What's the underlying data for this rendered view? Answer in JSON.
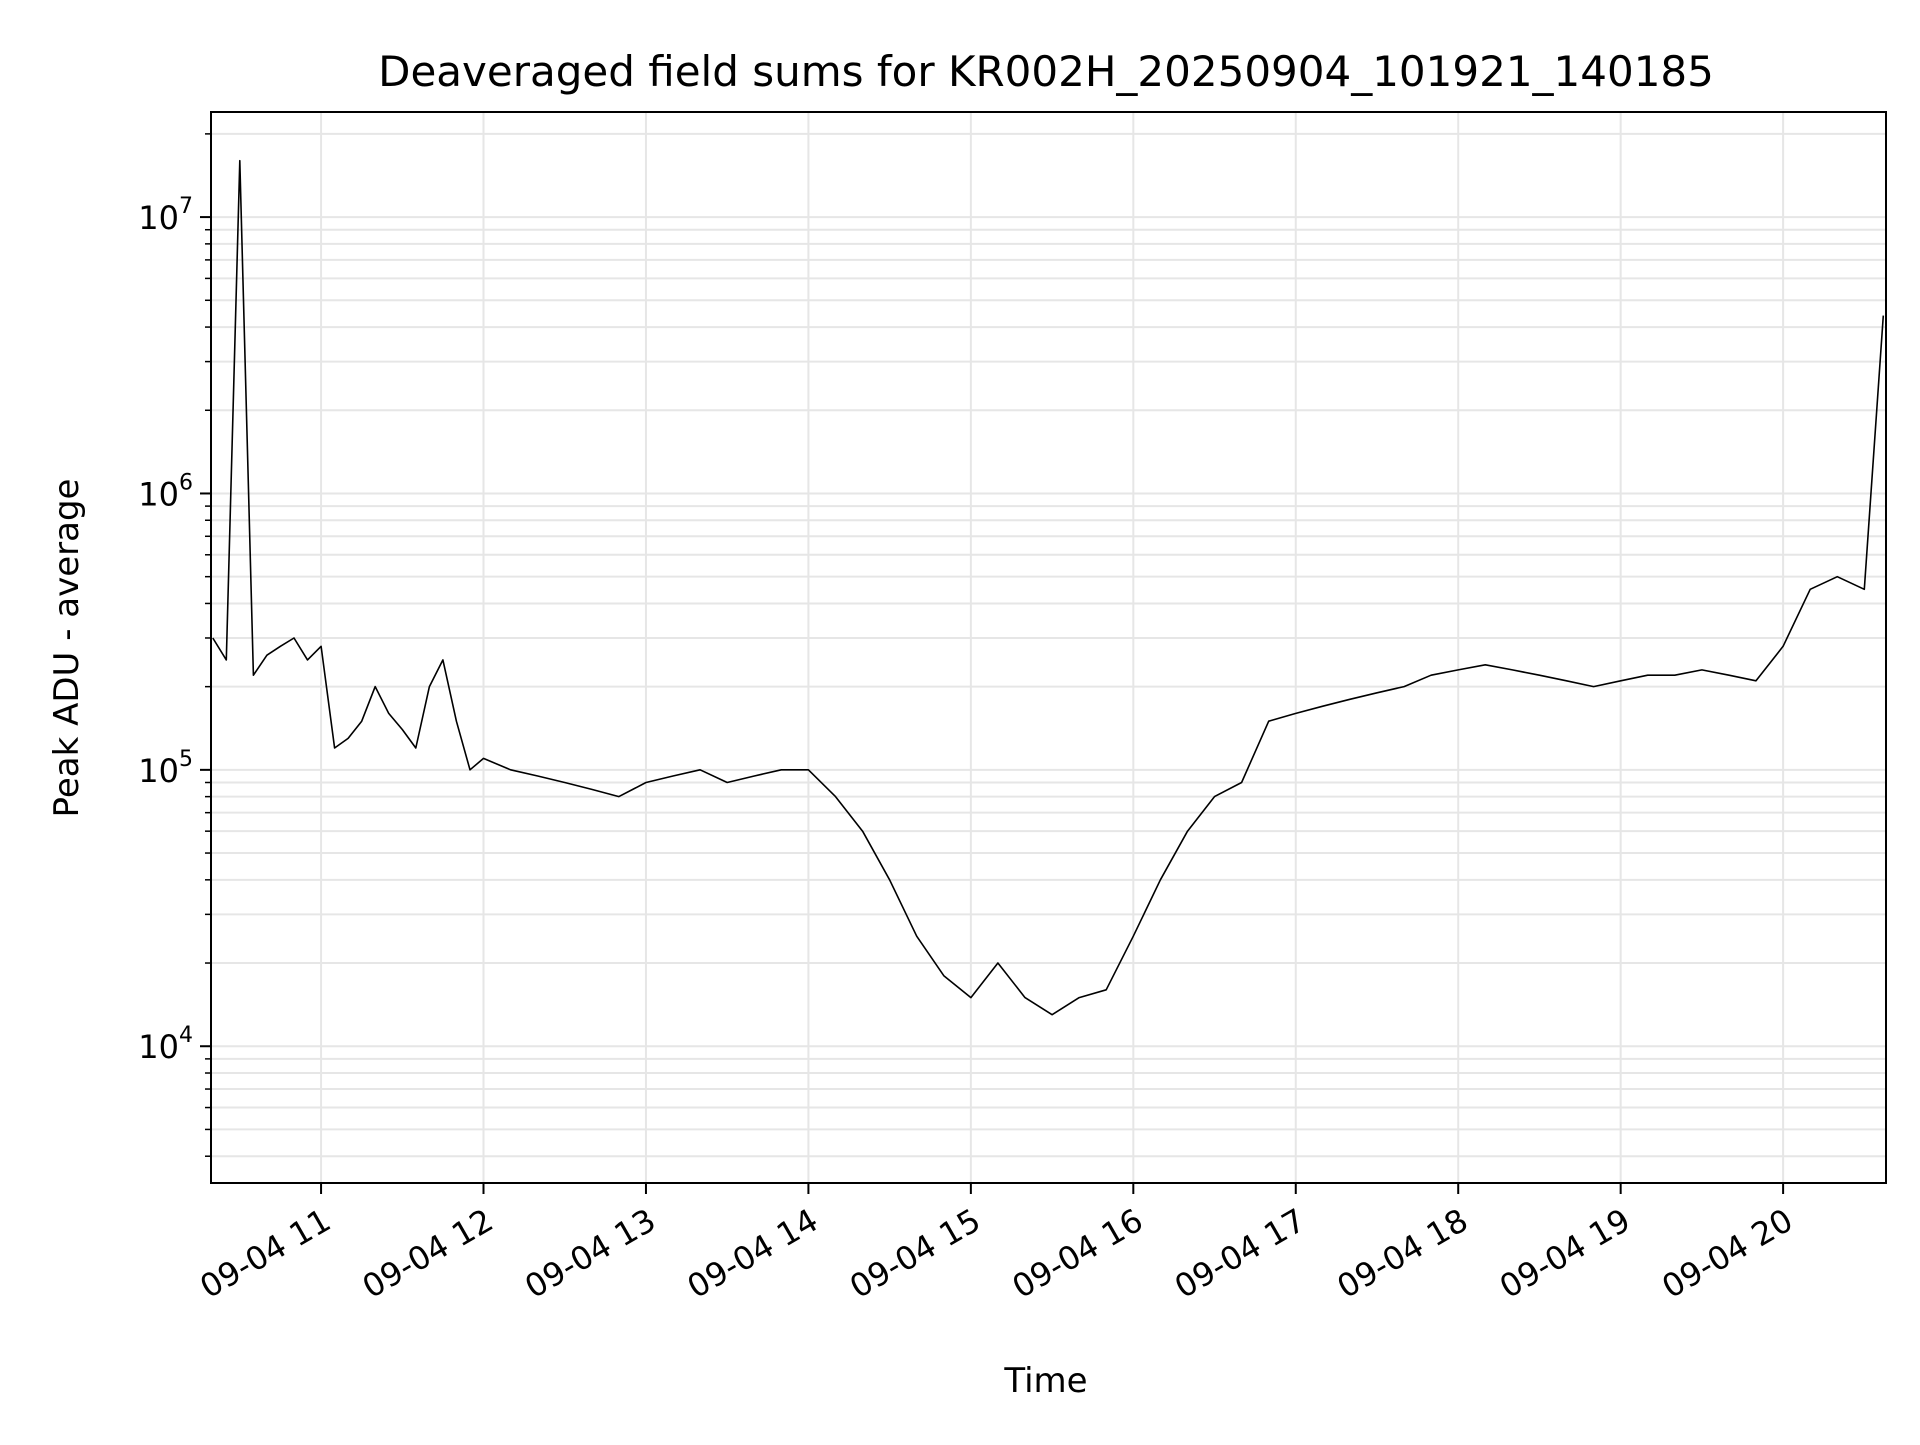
{
  "chart_data": {
    "type": "line",
    "title": "Deaveraged field sums for KR002H_20250904_101921_140185",
    "xlabel": "Time",
    "ylabel": "Peak ADU - average",
    "yscale": "log",
    "grid": true,
    "legend": "none",
    "line_color": "#000000",
    "grid_color": "#e6e6e6",
    "xlim": [
      "2025-09-04 10:19:21",
      "2025-09-04 20:38:00"
    ],
    "ylim": [
      3200,
      24000000
    ],
    "x_ticks": [
      {
        "label": "09-04 11",
        "time": "2025-09-04 11:00"
      },
      {
        "label": "09-04 12",
        "time": "2025-09-04 12:00"
      },
      {
        "label": "09-04 13",
        "time": "2025-09-04 13:00"
      },
      {
        "label": "09-04 14",
        "time": "2025-09-04 14:00"
      },
      {
        "label": "09-04 15",
        "time": "2025-09-04 15:00"
      },
      {
        "label": "09-04 16",
        "time": "2025-09-04 16:00"
      },
      {
        "label": "09-04 17",
        "time": "2025-09-04 17:00"
      },
      {
        "label": "09-04 18",
        "time": "2025-09-04 18:00"
      },
      {
        "label": "09-04 19",
        "time": "2025-09-04 19:00"
      },
      {
        "label": "09-04 20",
        "time": "2025-09-04 20:00"
      }
    ],
    "y_ticks": [
      {
        "base": "10",
        "exp": "4",
        "value": 10000
      },
      {
        "base": "10",
        "exp": "5",
        "value": 100000
      },
      {
        "base": "10",
        "exp": "6",
        "value": 1000000
      },
      {
        "base": "10",
        "exp": "7",
        "value": 10000000
      }
    ],
    "series": [
      {
        "x": [
          "2025-09-04 10:20",
          "2025-09-04 10:25",
          "2025-09-04 10:30",
          "2025-09-04 10:35",
          "2025-09-04 10:40",
          "2025-09-04 10:45",
          "2025-09-04 10:50",
          "2025-09-04 10:55",
          "2025-09-04 11:00",
          "2025-09-04 11:05",
          "2025-09-04 11:10",
          "2025-09-04 11:15",
          "2025-09-04 11:20",
          "2025-09-04 11:25",
          "2025-09-04 11:30",
          "2025-09-04 11:35",
          "2025-09-04 11:40",
          "2025-09-04 11:45",
          "2025-09-04 11:50",
          "2025-09-04 11:55",
          "2025-09-04 12:00",
          "2025-09-04 12:10",
          "2025-09-04 12:20",
          "2025-09-04 12:30",
          "2025-09-04 12:40",
          "2025-09-04 12:50",
          "2025-09-04 13:00",
          "2025-09-04 13:10",
          "2025-09-04 13:20",
          "2025-09-04 13:30",
          "2025-09-04 13:40",
          "2025-09-04 13:50",
          "2025-09-04 14:00",
          "2025-09-04 14:10",
          "2025-09-04 14:20",
          "2025-09-04 14:30",
          "2025-09-04 14:40",
          "2025-09-04 14:50",
          "2025-09-04 15:00",
          "2025-09-04 15:10",
          "2025-09-04 15:20",
          "2025-09-04 15:30",
          "2025-09-04 15:40",
          "2025-09-04 15:50",
          "2025-09-04 16:00",
          "2025-09-04 16:10",
          "2025-09-04 16:20",
          "2025-09-04 16:30",
          "2025-09-04 16:40",
          "2025-09-04 16:50",
          "2025-09-04 17:00",
          "2025-09-04 17:10",
          "2025-09-04 17:20",
          "2025-09-04 17:30",
          "2025-09-04 17:40",
          "2025-09-04 17:50",
          "2025-09-04 18:00",
          "2025-09-04 18:10",
          "2025-09-04 18:20",
          "2025-09-04 18:30",
          "2025-09-04 18:40",
          "2025-09-04 18:50",
          "2025-09-04 19:00",
          "2025-09-04 19:10",
          "2025-09-04 19:20",
          "2025-09-04 19:30",
          "2025-09-04 19:40",
          "2025-09-04 19:50",
          "2025-09-04 20:00",
          "2025-09-04 20:10",
          "2025-09-04 20:20",
          "2025-09-04 20:30",
          "2025-09-04 20:37"
        ],
        "y": [
          300000,
          250000,
          16000000,
          220000,
          260000,
          280000,
          300000,
          250000,
          280000,
          120000,
          130000,
          150000,
          200000,
          160000,
          140000,
          120000,
          200000,
          250000,
          150000,
          100000,
          110000,
          100000,
          95000,
          90000,
          85000,
          80000,
          90000,
          95000,
          100000,
          90000,
          95000,
          100000,
          100000,
          80000,
          60000,
          40000,
          25000,
          18000,
          15000,
          20000,
          15000,
          13000,
          15000,
          16000,
          25000,
          40000,
          60000,
          80000,
          90000,
          150000,
          160000,
          170000,
          180000,
          190000,
          200000,
          220000,
          230000,
          240000,
          230000,
          220000,
          210000,
          200000,
          210000,
          220000,
          220000,
          230000,
          220000,
          210000,
          280000,
          450000,
          500000,
          450000,
          4400000
        ]
      }
    ]
  }
}
